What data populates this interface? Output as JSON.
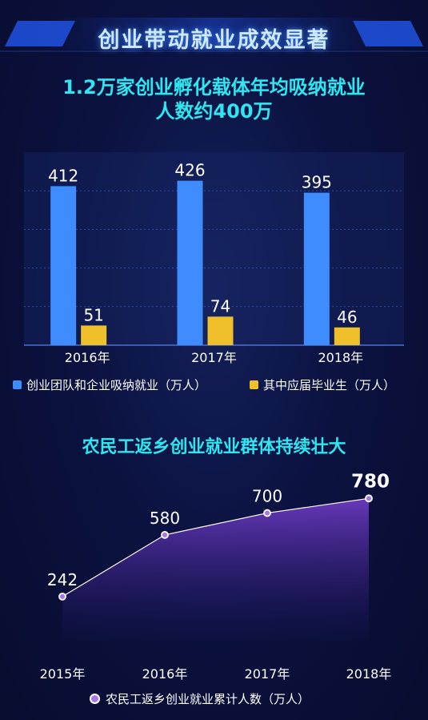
{
  "banner": {
    "title": "创业带动就业成效显著"
  },
  "colors": {
    "primary": "#3f8cff",
    "secondary": "#efc02a",
    "line_marker": "#a779e8",
    "title": "#2ee6f0"
  },
  "chart_data": [
    {
      "type": "bar",
      "title": "1.2万家创业孵化载体年均吸纳就业人数约400万",
      "title_lines": [
        "1.2万家创业孵化载体年均吸纳就业",
        "人数约400万"
      ],
      "categories": [
        "2016年",
        "2017年",
        "2018年"
      ],
      "series": [
        {
          "name": "创业团队和企业吸纳就业（万人）",
          "values": [
            412,
            426,
            395
          ],
          "color": "#3f8cff"
        },
        {
          "name": "其中应届毕业生（万人）",
          "values": [
            51,
            74,
            46
          ],
          "color": "#efc02a"
        }
      ],
      "ylim": [
        0,
        500
      ],
      "grid": true,
      "legend_position": "bottom"
    },
    {
      "type": "area",
      "title": "农民工返乡创业就业群体持续壮大",
      "categories": [
        "2015年",
        "2016年",
        "2017年",
        "2018年"
      ],
      "series": [
        {
          "name": "农民工返乡创业就业累计人数（万人）",
          "values": [
            242,
            580,
            700,
            780
          ],
          "color": "#a779e8"
        }
      ],
      "ylim": [
        0,
        900
      ],
      "highlight_last": true,
      "legend_position": "bottom"
    }
  ]
}
